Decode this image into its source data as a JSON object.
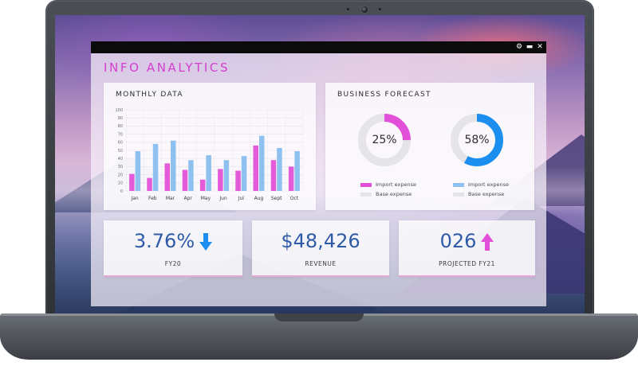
{
  "app": {
    "title": "INFO ANALYTICS",
    "controls": {
      "settings_icon": "gear-icon",
      "minimize_icon": "minimize-icon",
      "close_icon": "close-icon"
    }
  },
  "colors": {
    "accent_pink": "#d43ecf",
    "series_blue": "#8ec1ef",
    "series_pink": "#e35bd8",
    "donut_pink": "#e24fd8",
    "donut_blue": "#1c8ef0",
    "donut_track": "#e5e5e8",
    "kpi_text": "#2f5aa8",
    "arrow_blue": "#1c8ef0",
    "arrow_pink": "#e24fd8"
  },
  "monthly": {
    "title": "MONTHLY DATA",
    "chart_data": {
      "type": "bar",
      "title": "MONTHLY DATA",
      "categories": [
        "Jan",
        "Feb",
        "Mar",
        "Apr",
        "May",
        "Jun",
        "Jul",
        "Aug",
        "Sept",
        "Oct"
      ],
      "ylim": [
        0,
        100
      ],
      "yticks": [
        0,
        10,
        20,
        30,
        40,
        50,
        60,
        70,
        80,
        90,
        100
      ],
      "grid": true,
      "series": [
        {
          "color": "#e35bd8",
          "values": [
            21,
            16,
            34,
            26,
            14,
            27,
            25,
            56,
            38,
            30
          ]
        },
        {
          "color": "#8ec1ef",
          "values": [
            49,
            58,
            62,
            38,
            44,
            38,
            43,
            68,
            53,
            49
          ]
        }
      ]
    }
  },
  "forecast": {
    "title": "BUSINESS FORECAST",
    "donuts": [
      {
        "value": 25,
        "label": "25%",
        "color": "#e24fd8",
        "legend": [
          {
            "label": "Import expense",
            "color": "#e24fd8"
          },
          {
            "label": "Base expense",
            "color": "#e5e5e8"
          }
        ]
      },
      {
        "value": 58,
        "label": "58%",
        "color": "#1c8ef0",
        "legend": [
          {
            "label": "Import expense",
            "color": "#8ec1ef"
          },
          {
            "label": "Base expense",
            "color": "#e5e5e8"
          }
        ]
      }
    ]
  },
  "kpis": [
    {
      "value": "3.76%",
      "label": "FY20",
      "icon": "arrow-down-icon"
    },
    {
      "value": "$48,426",
      "label": "REVENUE",
      "icon": ""
    },
    {
      "value": "026",
      "label": "PROJECTED FY21",
      "icon": "arrow-up-icon"
    }
  ]
}
